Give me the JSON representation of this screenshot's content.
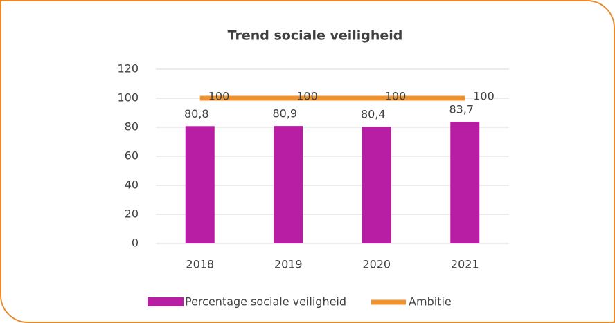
{
  "chart_data": {
    "type": "bar",
    "title": "Trend sociale veiligheid",
    "categories": [
      "2018",
      "2019",
      "2020",
      "2021"
    ],
    "series": [
      {
        "name": "Percentage sociale veiligheid",
        "type": "bar",
        "color": "#b81ea3",
        "values": [
          80.8,
          80.9,
          80.4,
          83.7
        ],
        "value_labels": [
          "80,8",
          "80,9",
          "80,4",
          "83,7"
        ]
      },
      {
        "name": "Ambitie",
        "type": "line",
        "color": "#f0922e",
        "values": [
          100,
          100,
          100,
          100
        ]
      }
    ],
    "ylim": [
      0,
      120
    ],
    "yticks": [
      0,
      20,
      40,
      60,
      80,
      100,
      120
    ],
    "grid": true,
    "legend": "bottom"
  }
}
